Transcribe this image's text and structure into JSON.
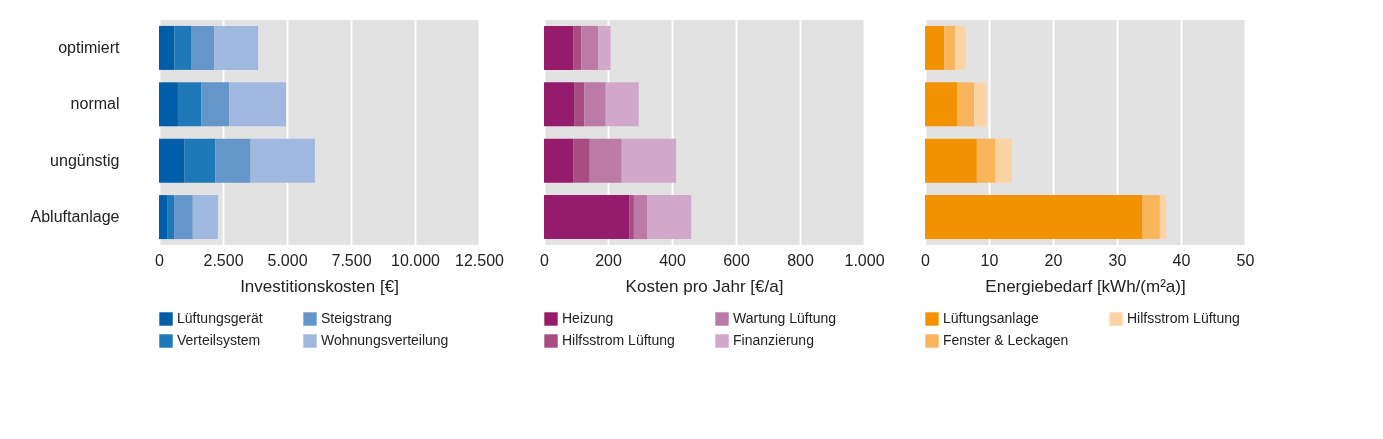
{
  "chart_data": [
    {
      "type": "bar",
      "orientation": "horizontal",
      "stacked": true,
      "categories": [
        "optimiert",
        "normal",
        "ungünstig",
        "Abluftanlage"
      ],
      "xlabel": "Investitionskosten [€]",
      "xlim": [
        0,
        12500
      ],
      "xticks": [
        0,
        {
          "value": 2500,
          "label": "2.500"
        },
        {
          "value": 5000,
          "label": "5.000"
        },
        {
          "value": 7500,
          "label": "7.500"
        },
        {
          "value": 10000,
          "label": "10.000"
        },
        {
          "value": 12500,
          "label": "12.500"
        }
      ],
      "grid": "x",
      "legend": "bottom",
      "series": [
        {
          "name": "Lüftungsgerät",
          "color": "#005ea8",
          "values": [
            600,
            740,
            1000,
            340
          ]
        },
        {
          "name": "Verteilsystem",
          "color": "#1f78b8",
          "values": [
            650,
            910,
            1200,
            250
          ]
        },
        {
          "name": "Steigstrang",
          "color": "#6596c9",
          "values": [
            910,
            1090,
            1380,
            730
          ]
        },
        {
          "name": "Wohnungsverteilung",
          "color": "#a0b8df",
          "values": [
            1710,
            2220,
            2510,
            980
          ]
        }
      ]
    },
    {
      "type": "bar",
      "orientation": "horizontal",
      "stacked": true,
      "categories": [
        null,
        null,
        null,
        null
      ],
      "xlabel": "Kosten pro Jahr  [€/a]",
      "xlim": [
        0,
        1000
      ],
      "xticks": [
        0,
        200,
        400,
        600,
        800,
        {
          "value": 1000,
          "label": "1.000"
        }
      ],
      "grid": "x",
      "legend": "bottom",
      "tick_labels": "x",
      "series": [
        {
          "name": "Heizung",
          "color": "#951b6d",
          "values": [
            91,
            94,
            91,
            266
          ]
        },
        {
          "name": "Hilfsstrom Lüftung",
          "color": "#a84c84",
          "values": [
            26,
            32,
            52,
            15
          ]
        },
        {
          "name": "Wartung Lüftung",
          "color": "#bc7aa6",
          "values": [
            53,
            67,
            100,
            41
          ]
        },
        {
          "name": "Finanzierung",
          "color": "#d1a8c9",
          "values": [
            38,
            103,
            170,
            138
          ]
        }
      ]
    },
    {
      "type": "bar",
      "orientation": "horizontal",
      "stacked": true,
      "categories": [
        null,
        null,
        null,
        null
      ],
      "xlabel": "Energiebedarf [kWh/(m²a)]",
      "xlim": [
        0,
        50
      ],
      "xticks": [
        0,
        10,
        20,
        30,
        40,
        50
      ],
      "grid": "x",
      "legend": "bottom",
      "tick_labels": "x",
      "series": [
        {
          "name": "Lüftungsanlage",
          "color": "#f39200",
          "values": [
            3.0,
            5.0,
            8.1,
            34.0
          ]
        },
        {
          "name": "Fenster & Leckagen",
          "color": "#f9b55c",
          "values": [
            1.7,
            2.7,
            2.9,
            2.7
          ]
        },
        {
          "name": "Hilfsstrom Lüftung",
          "color": "#fcd4a4",
          "values": [
            1.6,
            1.9,
            2.6,
            1.0
          ]
        }
      ]
    }
  ]
}
